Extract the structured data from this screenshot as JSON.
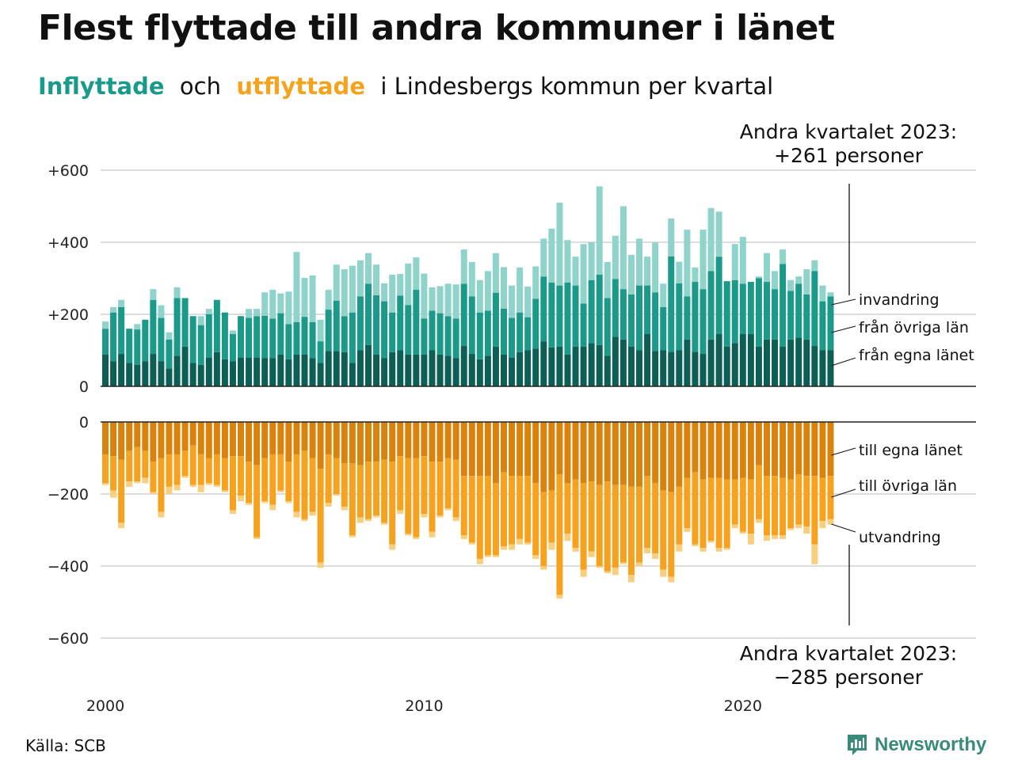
{
  "title": "Flest flyttade till andra kommuner i länet",
  "subtitle": {
    "part1": "Inflyttade",
    "part2": "och",
    "part3": "utflyttade",
    "part4": "i Lindesbergs kommun per kvartal"
  },
  "annotation_top": [
    "Andra kvartalet 2023:",
    "+261 personer"
  ],
  "annotation_bottom": [
    "Andra kvartalet 2023:",
    "−285 personer"
  ],
  "source": "Källa: SCB",
  "brand": "Newsworthy",
  "colors": {
    "in_own_county": "#0d5f55",
    "in_other_counties": "#1b9a8a",
    "in_immigration": "#8fd3ca",
    "out_own_county": "#d9830d",
    "out_other_counties": "#f7a21e",
    "out_emigration": "#f8cf7e",
    "grid": "#dddddd",
    "axis": "#222222"
  },
  "chart_data": {
    "type": "bar",
    "stacked": true,
    "diverging": true,
    "x_start": "2000 Q1",
    "x_ticks": [
      "2000",
      "2010",
      "2020"
    ],
    "yticks_top": [
      "+600",
      "+400",
      "+200",
      "0"
    ],
    "yticks_bottom": [
      "0",
      "−200",
      "−400",
      "−600"
    ],
    "ylim_top": [
      0,
      600
    ],
    "ylim_bottom": [
      -600,
      0
    ],
    "series_labels_in": [
      "invandring",
      "från övriga län",
      "från egna länet"
    ],
    "series_labels_out": [
      "till egna länet",
      "till övriga län",
      "utvandring"
    ],
    "in_own_county": [
      88,
      70,
      90,
      65,
      60,
      70,
      90,
      70,
      50,
      85,
      110,
      65,
      60,
      80,
      95,
      75,
      70,
      80,
      80,
      80,
      78,
      78,
      88,
      75,
      88,
      88,
      78,
      65,
      98,
      98,
      95,
      65,
      100,
      115,
      88,
      78,
      95,
      100,
      88,
      88,
      88,
      100,
      88,
      85,
      78,
      112,
      90,
      75,
      85,
      110,
      88,
      80,
      95,
      100,
      105,
      125,
      108,
      110,
      88,
      110,
      110,
      120,
      115,
      85,
      138,
      130,
      110,
      100,
      145,
      98,
      100,
      96,
      100,
      130,
      96,
      90,
      130,
      145,
      110,
      120,
      145,
      145,
      110,
      130,
      130,
      110,
      130,
      135,
      130,
      112,
      100,
      100
    ],
    "in_other_counties": [
      72,
      135,
      130,
      95,
      98,
      115,
      150,
      120,
      80,
      160,
      135,
      130,
      110,
      120,
      145,
      130,
      75,
      115,
      110,
      115,
      118,
      110,
      115,
      98,
      90,
      105,
      100,
      60,
      115,
      140,
      100,
      140,
      150,
      170,
      165,
      158,
      110,
      152,
      138,
      180,
      100,
      110,
      115,
      110,
      110,
      173,
      160,
      130,
      125,
      150,
      128,
      110,
      110,
      92,
      138,
      180,
      180,
      170,
      200,
      170,
      120,
      175,
      195,
      160,
      160,
      140,
      145,
      180,
      135,
      163,
      120,
      265,
      186,
      120,
      194,
      180,
      190,
      215,
      182,
      175,
      140,
      145,
      190,
      160,
      140,
      230,
      135,
      150,
      125,
      208,
      136,
      150
    ],
    "in_immigration": [
      20,
      15,
      20,
      0,
      15,
      0,
      30,
      35,
      20,
      30,
      0,
      0,
      25,
      15,
      0,
      0,
      10,
      0,
      25,
      20,
      65,
      80,
      55,
      90,
      195,
      108,
      130,
      60,
      55,
      100,
      130,
      130,
      100,
      85,
      85,
      50,
      105,
      60,
      115,
      90,
      125,
      65,
      75,
      90,
      95,
      95,
      95,
      90,
      110,
      110,
      115,
      90,
      125,
      85,
      90,
      105,
      150,
      230,
      118,
      80,
      165,
      105,
      245,
      100,
      120,
      230,
      110,
      130,
      80,
      138,
      65,
      105,
      60,
      185,
      40,
      165,
      175,
      125,
      0,
      100,
      130,
      0,
      5,
      80,
      50,
      40,
      30,
      20,
      70,
      30,
      44,
      11
    ],
    "out_own_county": [
      90,
      95,
      105,
      80,
      70,
      80,
      110,
      100,
      90,
      90,
      80,
      65,
      90,
      100,
      90,
      100,
      95,
      95,
      110,
      120,
      100,
      90,
      90,
      110,
      90,
      80,
      100,
      130,
      90,
      100,
      115,
      115,
      120,
      110,
      110,
      105,
      110,
      95,
      100,
      100,
      95,
      110,
      110,
      100,
      105,
      150,
      150,
      150,
      150,
      170,
      140,
      150,
      150,
      150,
      170,
      195,
      190,
      145,
      170,
      160,
      170,
      165,
      175,
      165,
      175,
      175,
      180,
      180,
      150,
      170,
      190,
      195,
      180,
      155,
      140,
      160,
      155,
      155,
      160,
      160,
      155,
      160,
      120,
      150,
      150,
      155,
      160,
      145,
      150,
      150,
      155,
      150
    ],
    "out_other_counties": [
      80,
      95,
      175,
      85,
      95,
      75,
      85,
      150,
      90,
      85,
      70,
      110,
      85,
      70,
      85,
      90,
      150,
      110,
      115,
      200,
      120,
      140,
      100,
      110,
      160,
      190,
      150,
      260,
      135,
      100,
      120,
      200,
      145,
      160,
      150,
      175,
      230,
      150,
      210,
      220,
      160,
      195,
      150,
      140,
      160,
      165,
      185,
      230,
      220,
      200,
      205,
      190,
      175,
      185,
      200,
      205,
      145,
      335,
      140,
      190,
      240,
      195,
      225,
      250,
      230,
      215,
      245,
      210,
      200,
      195,
      220,
      235,
      160,
      140,
      200,
      190,
      175,
      195,
      190,
      125,
      150,
      150,
      150,
      165,
      165,
      160,
      135,
      140,
      140,
      190,
      120,
      120
    ],
    "out_emigration": [
      5,
      20,
      15,
      15,
      5,
      15,
      5,
      15,
      20,
      15,
      5,
      5,
      20,
      5,
      5,
      5,
      10,
      15,
      5,
      5,
      5,
      15,
      5,
      5,
      15,
      5,
      10,
      15,
      10,
      5,
      10,
      5,
      15,
      5,
      5,
      5,
      15,
      10,
      5,
      5,
      10,
      15,
      5,
      5,
      10,
      10,
      5,
      15,
      5,
      5,
      10,
      15,
      15,
      5,
      10,
      10,
      20,
      10,
      20,
      10,
      20,
      15,
      5,
      5,
      20,
      5,
      20,
      10,
      15,
      15,
      20,
      15,
      20,
      10,
      5,
      10,
      5,
      10,
      5,
      10,
      5,
      30,
      10,
      15,
      10,
      10,
      5,
      10,
      20,
      55,
      20,
      15
    ],
    "legend": "inline labels right of last bar"
  }
}
